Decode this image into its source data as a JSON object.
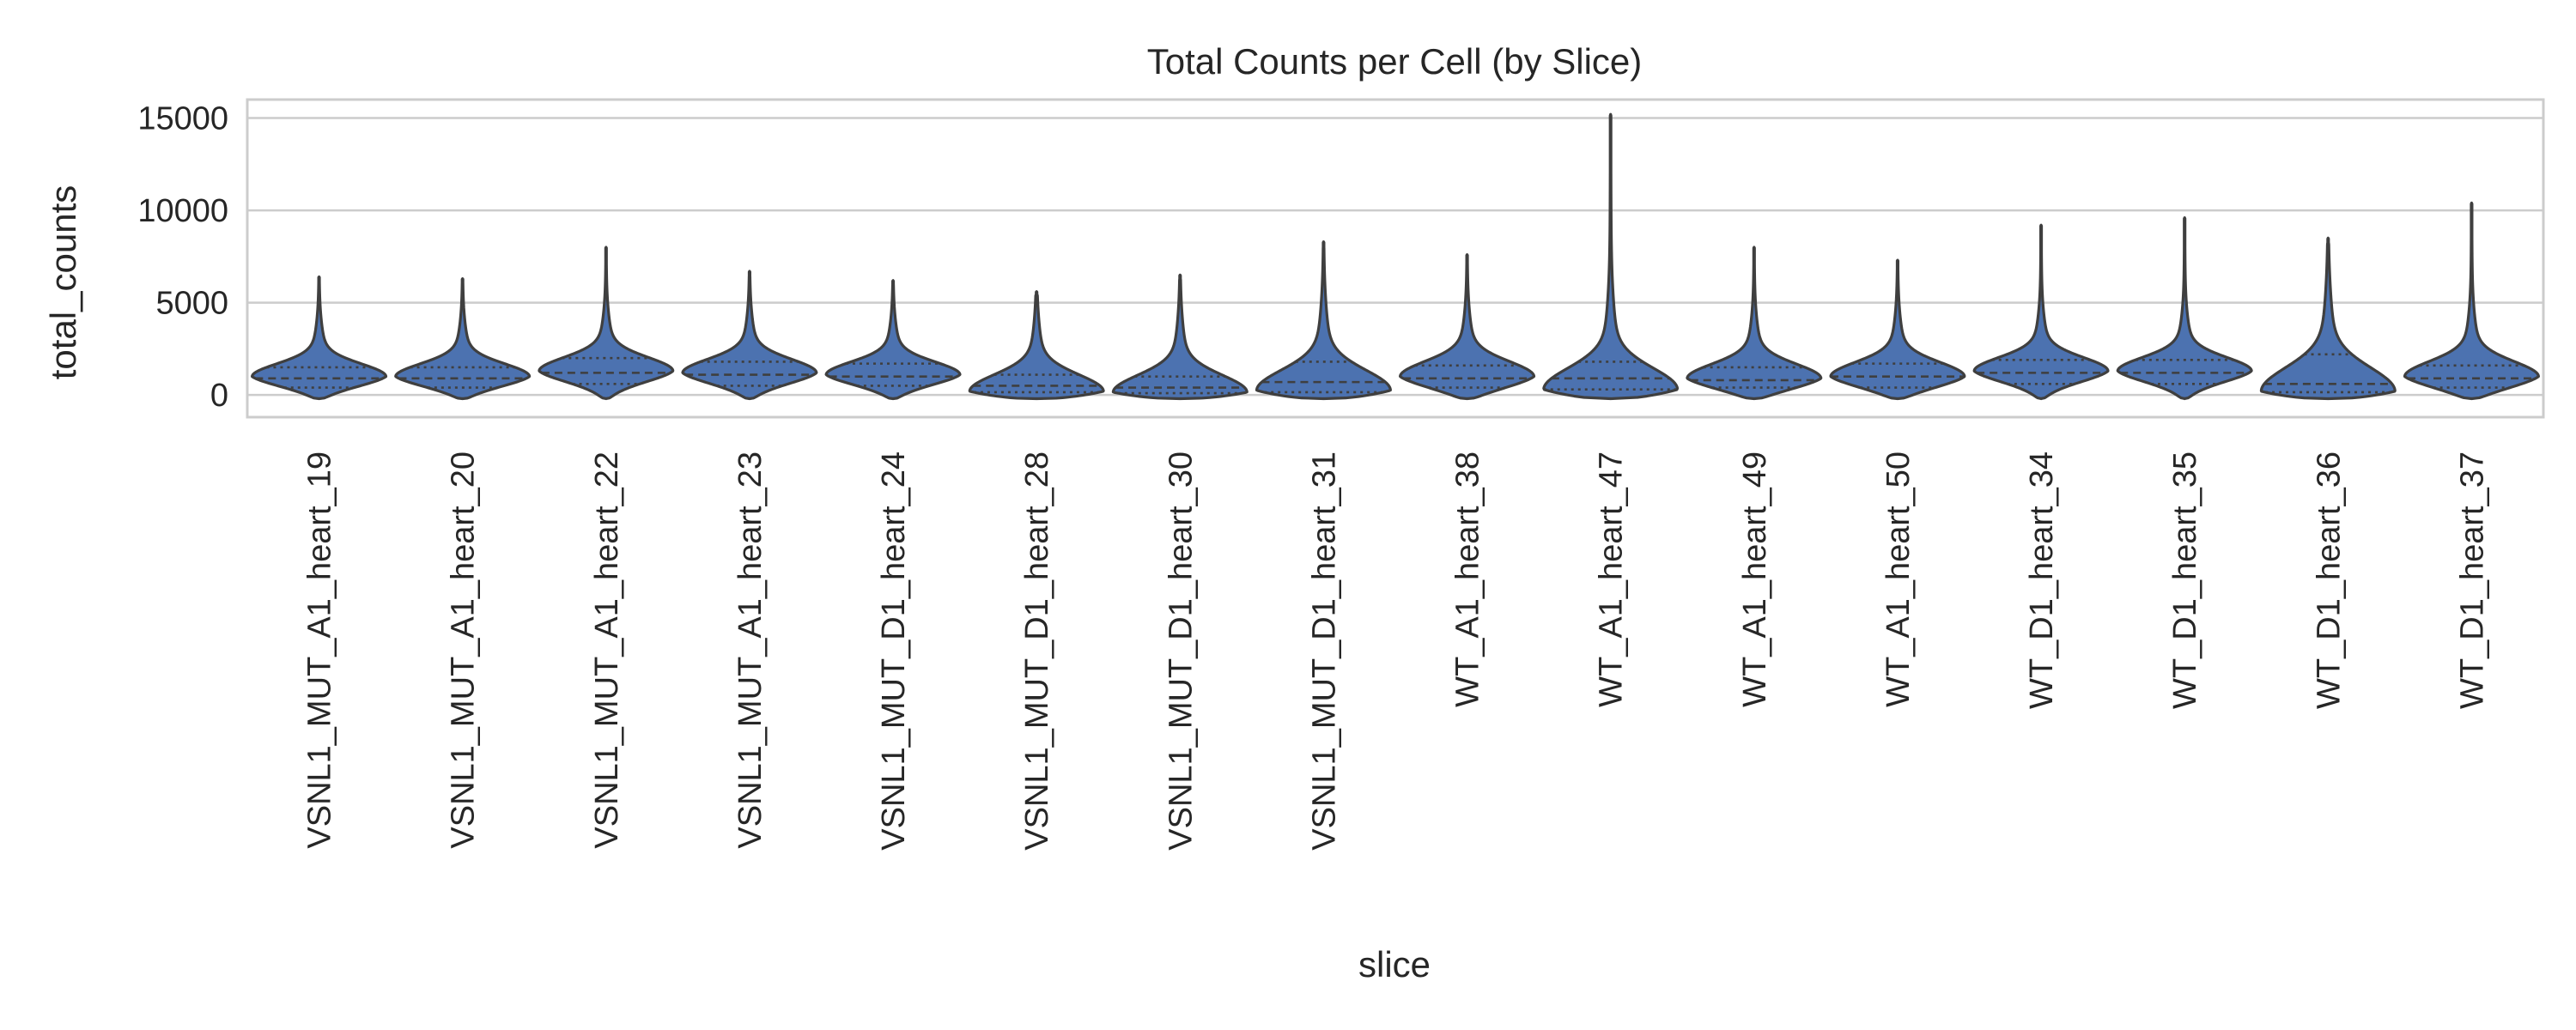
{
  "chart_data": {
    "type": "violin",
    "title": "Total Counts per Cell (by Slice)",
    "xlabel": "slice",
    "ylabel": "total_counts",
    "ylim": [
      -1200,
      16000
    ],
    "yticks": [
      0,
      5000,
      10000,
      15000
    ],
    "grid": "horizontal",
    "legend": "none",
    "inner": "quartile",
    "color": "#4c72b0",
    "edge_color": "#3f3f3f",
    "categories": [
      "VSNL1_MUT_A1_heart_19",
      "VSNL1_MUT_A1_heart_20",
      "VSNL1_MUT_A1_heart_22",
      "VSNL1_MUT_A1_heart_23",
      "VSNL1_MUT_D1_heart_24",
      "VSNL1_MUT_D1_heart_28",
      "VSNL1_MUT_D1_heart_30",
      "VSNL1_MUT_D1_heart_31",
      "WT_A1_heart_38",
      "WT_A1_heart_47",
      "WT_A1_heart_49",
      "WT_A1_heart_50",
      "WT_D1_heart_34",
      "WT_D1_heart_35",
      "WT_D1_heart_36",
      "WT_D1_heart_37"
    ],
    "violins": [
      {
        "min": -200,
        "max": 6400,
        "mode": 1000,
        "bulk_top": 2600,
        "q1": 400,
        "median": 900,
        "q3": 1500
      },
      {
        "min": -200,
        "max": 6300,
        "mode": 1000,
        "bulk_top": 2600,
        "q1": 400,
        "median": 900,
        "q3": 1500
      },
      {
        "min": -200,
        "max": 8000,
        "mode": 1300,
        "bulk_top": 3000,
        "q1": 600,
        "median": 1200,
        "q3": 2000
      },
      {
        "min": -200,
        "max": 6700,
        "mode": 1200,
        "bulk_top": 2900,
        "q1": 500,
        "median": 1100,
        "q3": 1800
      },
      {
        "min": -200,
        "max": 6200,
        "mode": 1100,
        "bulk_top": 2700,
        "q1": 500,
        "median": 1000,
        "q3": 1700
      },
      {
        "min": -200,
        "max": 5600,
        "mode": 200,
        "bulk_top": 2300,
        "q1": 150,
        "median": 500,
        "q3": 1100
      },
      {
        "min": -200,
        "max": 6500,
        "mode": 150,
        "bulk_top": 2300,
        "q1": 100,
        "median": 400,
        "q3": 1000
      },
      {
        "min": -200,
        "max": 8300,
        "mode": 250,
        "bulk_top": 2800,
        "q1": 150,
        "median": 700,
        "q3": 1800
      },
      {
        "min": -200,
        "max": 7600,
        "mode": 1000,
        "bulk_top": 2900,
        "q1": 400,
        "median": 900,
        "q3": 1600
      },
      {
        "min": -200,
        "max": 15200,
        "mode": 300,
        "bulk_top": 3000,
        "q1": 300,
        "median": 900,
        "q3": 1800
      },
      {
        "min": -200,
        "max": 8000,
        "mode": 900,
        "bulk_top": 2700,
        "q1": 400,
        "median": 800,
        "q3": 1500
      },
      {
        "min": -200,
        "max": 7300,
        "mode": 1000,
        "bulk_top": 2800,
        "q1": 400,
        "median": 1000,
        "q3": 1700
      },
      {
        "min": -200,
        "max": 9200,
        "mode": 1300,
        "bulk_top": 3000,
        "q1": 600,
        "median": 1200,
        "q3": 1900
      },
      {
        "min": -200,
        "max": 9600,
        "mode": 1300,
        "bulk_top": 3000,
        "q1": 600,
        "median": 1200,
        "q3": 1900
      },
      {
        "min": -200,
        "max": 8500,
        "mode": 200,
        "bulk_top": 3200,
        "q1": 150,
        "median": 600,
        "q3": 2200
      },
      {
        "min": -200,
        "max": 10400,
        "mode": 1000,
        "bulk_top": 2900,
        "q1": 400,
        "median": 900,
        "q3": 1600
      }
    ]
  }
}
